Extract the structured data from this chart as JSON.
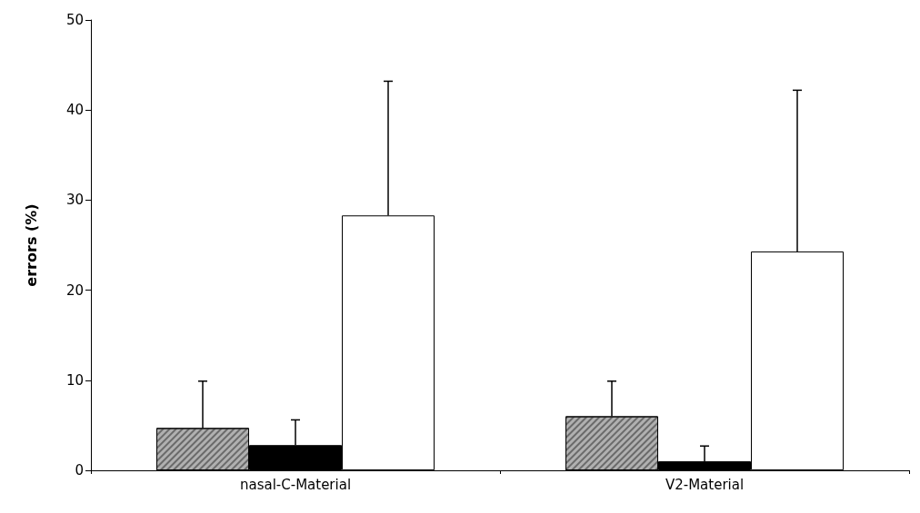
{
  "chart_data": {
    "type": "bar",
    "ylabel": "errors (%)",
    "categories": [
      "nasal-C-Material",
      "V2-Material"
    ],
    "series": [
      {
        "color": "#b0b0b0",
        "values": [
          4.7,
          6.0
        ],
        "errors": [
          [
            4.7,
            9.9
          ],
          [
            6.0,
            9.9
          ]
        ]
      },
      {
        "color": "#000000",
        "values": [
          2.8,
          1.0
        ],
        "errors": [
          [
            2.8,
            5.6
          ],
          [
            1.0,
            2.7
          ]
        ]
      },
      {
        "color": "#ffffff",
        "values": [
          28.3,
          24.3
        ],
        "errors": [
          [
            28.3,
            43.2
          ],
          [
            24.3,
            42.2
          ]
        ]
      }
    ],
    "ylim": [
      0,
      50
    ],
    "yticks": [
      0,
      10,
      20,
      30,
      40,
      50
    ]
  }
}
